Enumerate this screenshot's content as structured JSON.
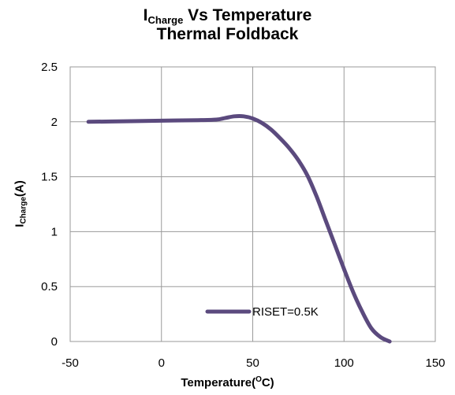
{
  "chart_data": {
    "type": "line",
    "title_main": "I",
    "title_sub": "Charge",
    "title_rest": " Vs Temperature",
    "subtitle": "Thermal Foldback",
    "ylabel_main": "I",
    "ylabel_sub": "Charge",
    "ylabel_rest": "(A)",
    "xlabel_main": "Temperature(",
    "xlabel_sup": "O",
    "xlabel_rest": "C)",
    "xlim": [
      -50,
      150
    ],
    "ylim": [
      0,
      2.5
    ],
    "x_ticks": [
      "-50",
      "0",
      "50",
      "100",
      "150"
    ],
    "y_ticks": [
      "0",
      "0.5",
      "1",
      "1.5",
      "2",
      "2.5"
    ],
    "grid": true,
    "legend_position": "bottom-center",
    "series": [
      {
        "name": "RISET=0.5K",
        "color": "#5b4a7e",
        "x": [
          -40,
          -20,
          0,
          20,
          30,
          35,
          40,
          45,
          50,
          55,
          60,
          65,
          70,
          75,
          80,
          85,
          90,
          95,
          100,
          105,
          110,
          115,
          120,
          125
        ],
        "y": [
          2.0,
          2.005,
          2.01,
          2.015,
          2.02,
          2.035,
          2.05,
          2.05,
          2.03,
          1.99,
          1.93,
          1.85,
          1.76,
          1.65,
          1.51,
          1.32,
          1.1,
          0.88,
          0.66,
          0.45,
          0.27,
          0.12,
          0.04,
          0.0
        ]
      }
    ]
  }
}
